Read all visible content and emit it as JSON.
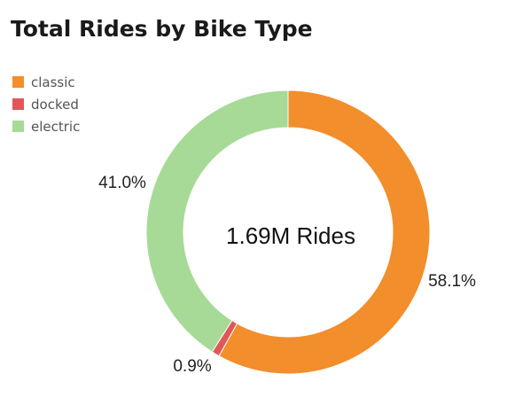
{
  "chart_data": {
    "type": "pie",
    "style": "donut",
    "title": "Total Rides by Bike Type",
    "center_label": "1.69M Rides",
    "categories": [
      "classic",
      "docked",
      "electric"
    ],
    "values": [
      58.1,
      0.9,
      41.0
    ],
    "value_labels": [
      "58.1%",
      "0.9%",
      "41.0%"
    ],
    "colors": [
      "#F28E2B",
      "#E15759",
      "#A6DA96"
    ],
    "legend_placement": "top-left"
  }
}
